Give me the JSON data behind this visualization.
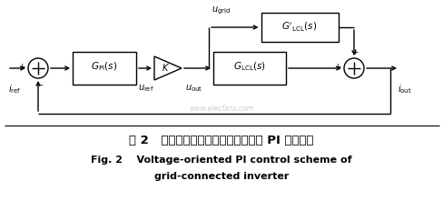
{
  "fig_width": 4.89,
  "fig_height": 2.21,
  "dpi": 100,
  "bg_color": "#ffffff",
  "line_color": "#000000",
  "caption_zh": "图 2   并网逆变器基于电网电压定向的 PI 控制框图",
  "caption_en1": "Fig. 2    Voltage-oriented PI control scheme of",
  "caption_en2": "grid-connected inverter",
  "watermark": "www.elecfans.com"
}
